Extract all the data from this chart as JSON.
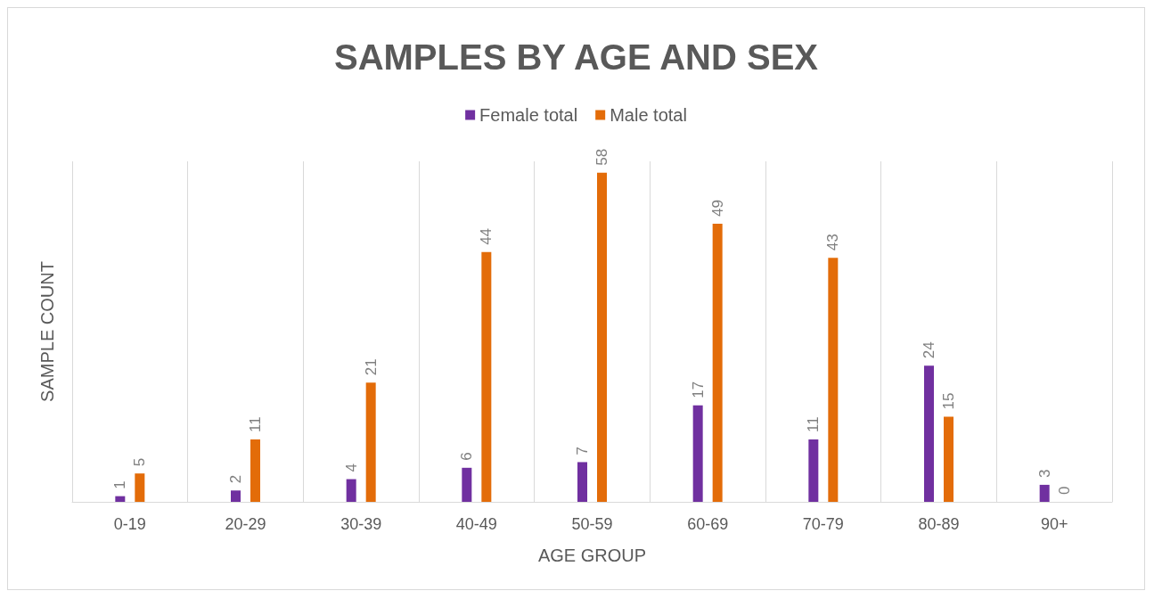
{
  "chart_data": {
    "type": "bar",
    "title": "SAMPLES BY AGE AND SEX",
    "xlabel": "AGE GROUP",
    "ylabel": "SAMPLE COUNT",
    "categories": [
      "0-19",
      "20-29",
      "30-39",
      "40-49",
      "50-59",
      "60-69",
      "70-79",
      "80-89",
      "90+"
    ],
    "series": [
      {
        "name": "Female total",
        "color": "#7030a0",
        "values": [
          1,
          2,
          4,
          6,
          7,
          17,
          11,
          24,
          3
        ]
      },
      {
        "name": "Male total",
        "color": "#e36c09",
        "values": [
          5,
          11,
          21,
          44,
          58,
          49,
          43,
          15,
          0
        ]
      }
    ],
    "data_labels": true,
    "grid": "x",
    "legend": "top",
    "tick_labels": "x"
  }
}
